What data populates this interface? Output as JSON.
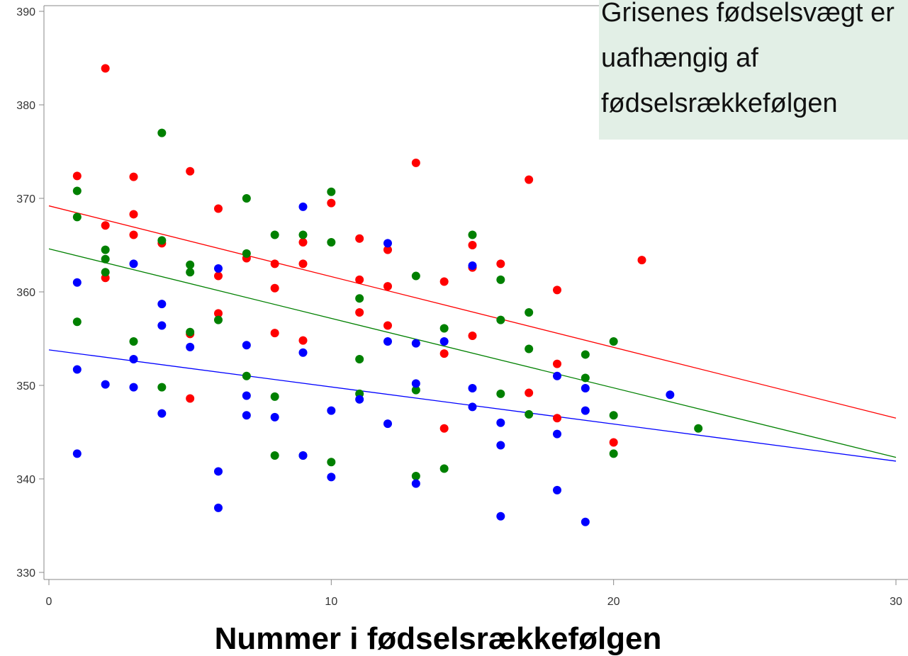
{
  "chart_data": {
    "type": "scatter",
    "xlabel": "Nummer i fødselsrækkefølgen",
    "annotation": [
      "Grisenes fødselsvægt er",
      "uafhængig af",
      "fødselsrækkefølgen"
    ],
    "xlim": [
      0,
      30
    ],
    "ylim": [
      330,
      390
    ],
    "xticks": [
      0,
      10,
      20,
      30
    ],
    "yticks": [
      330,
      340,
      350,
      360,
      370,
      380,
      390
    ],
    "series": [
      {
        "color": "#ff0000",
        "x": [
          1,
          2,
          2,
          2,
          3,
          3,
          3,
          4,
          5,
          5,
          5,
          6,
          6,
          6,
          7,
          8,
          8,
          8,
          9,
          9,
          9,
          10,
          11,
          11,
          11,
          12,
          12,
          12,
          13,
          14,
          14,
          14,
          15,
          15,
          15,
          16,
          17,
          17,
          18,
          18,
          18,
          20,
          21
        ],
        "values": [
          372.4,
          383.9,
          367.1,
          361.5,
          372.3,
          368.3,
          366.1,
          365.2,
          372.9,
          355.5,
          348.6,
          368.9,
          361.7,
          357.7,
          363.6,
          363.0,
          360.4,
          355.6,
          365.3,
          363.0,
          354.8,
          369.5,
          365.7,
          361.3,
          357.8,
          364.5,
          360.6,
          356.4,
          373.8,
          361.1,
          353.4,
          345.4,
          365.0,
          362.6,
          355.3,
          363.0,
          372.0,
          349.2,
          360.2,
          352.3,
          346.5,
          343.9,
          363.4
        ]
      },
      {
        "color": "#008000",
        "x": [
          1,
          1,
          1,
          2,
          2,
          2,
          3,
          4,
          4,
          4,
          5,
          5,
          5,
          6,
          7,
          7,
          7,
          8,
          8,
          8,
          9,
          9,
          10,
          10,
          10,
          11,
          11,
          11,
          13,
          13,
          13,
          14,
          14,
          15,
          16,
          16,
          16,
          17,
          17,
          17,
          19,
          19,
          20,
          20,
          20,
          23
        ],
        "values": [
          370.8,
          368.0,
          356.8,
          364.5,
          363.5,
          362.1,
          354.7,
          377.0,
          365.5,
          349.8,
          362.9,
          362.1,
          355.7,
          357.0,
          370.0,
          364.1,
          351.0,
          366.1,
          348.8,
          342.5,
          366.1,
          342.5,
          370.7,
          365.3,
          341.8,
          359.3,
          352.8,
          349.1,
          361.7,
          349.5,
          340.3,
          356.1,
          341.1,
          366.1,
          361.3,
          357.0,
          349.1,
          357.8,
          353.9,
          346.9,
          353.3,
          350.8,
          354.7,
          346.8,
          342.7,
          345.4
        ]
      },
      {
        "color": "#0000ff",
        "x": [
          1,
          1,
          1,
          2,
          3,
          3,
          3,
          4,
          4,
          4,
          5,
          6,
          6,
          6,
          7,
          7,
          7,
          8,
          9,
          9,
          9,
          10,
          10,
          11,
          12,
          12,
          12,
          13,
          13,
          13,
          14,
          15,
          15,
          15,
          16,
          16,
          16,
          18,
          18,
          18,
          19,
          19,
          19,
          22
        ],
        "values": [
          361.0,
          351.7,
          342.7,
          350.1,
          363.0,
          352.8,
          349.8,
          358.7,
          356.4,
          347.0,
          354.1,
          362.5,
          340.8,
          336.9,
          354.3,
          348.9,
          346.8,
          346.6,
          369.1,
          353.5,
          342.5,
          347.3,
          340.2,
          348.5,
          365.2,
          354.7,
          345.9,
          354.5,
          350.2,
          339.5,
          354.7,
          362.8,
          349.7,
          347.7,
          346.0,
          343.6,
          336.0,
          351.0,
          344.8,
          338.8,
          349.7,
          347.3,
          335.4,
          349.0
        ]
      }
    ],
    "fit_lines": [
      {
        "color": "#ff0000",
        "x": [
          0,
          30
        ],
        "values": [
          369.2,
          346.5
        ]
      },
      {
        "color": "#008000",
        "x": [
          0,
          30
        ],
        "values": [
          364.6,
          342.3
        ]
      },
      {
        "color": "#0000ff",
        "x": [
          0,
          30
        ],
        "values": [
          353.8,
          341.9
        ]
      }
    ]
  }
}
